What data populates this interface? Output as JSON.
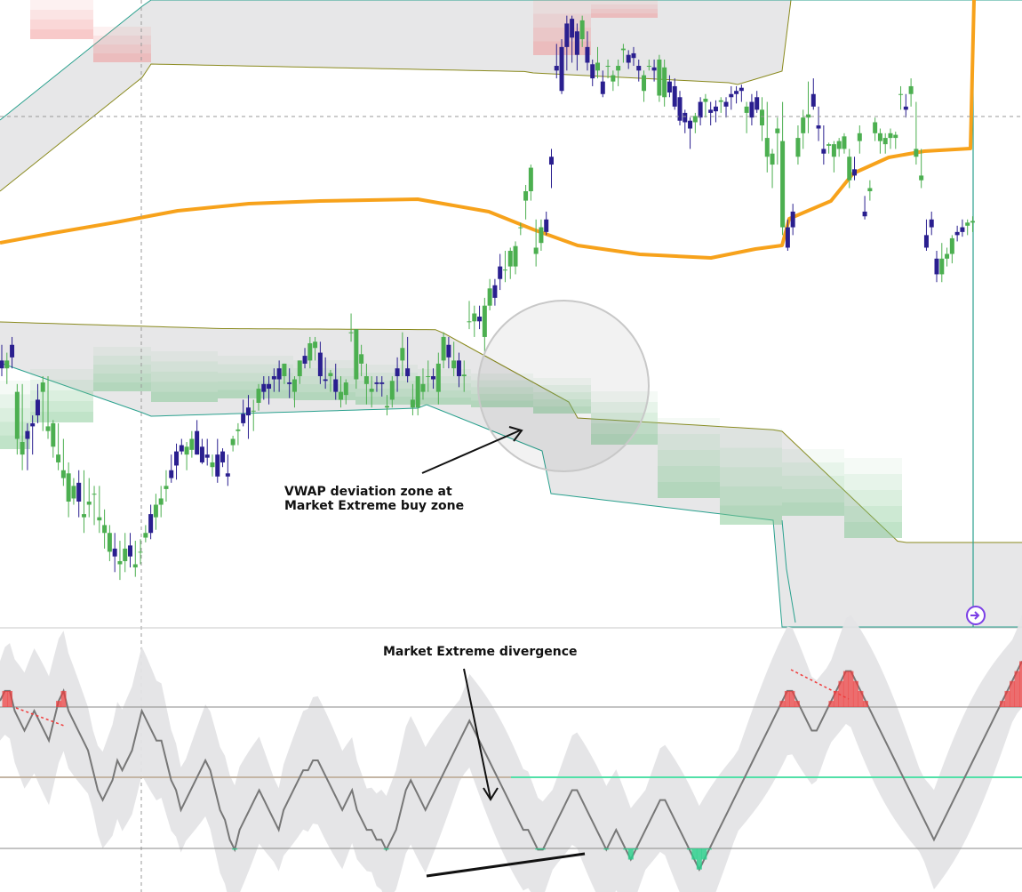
{
  "chart_data": {
    "type": "candlestick_with_oscillator",
    "colors": {
      "bull": "#4caf50",
      "bear": "#2a1f8f",
      "vwap": "#f7a21b",
      "band_fill": "#e4e4e6",
      "upper_inner_line": "#8a8a1e",
      "outer_line": "#2aa18e",
      "sell_zone": "#f08f8f",
      "buy_zone": "#7cc48b",
      "osc_line": "#777777",
      "osc_bear": "#f03b3b",
      "osc_bull": "#25d08a",
      "midline_red": "#f5a3a3",
      "midline_green": "#52e0a8",
      "marker": "#7b3fe6"
    },
    "price_panel": {
      "candles": [
        [
          210,
          220,
          200,
          205
        ],
        [
          205,
          215,
          195,
          210
        ],
        [
          220,
          225,
          205,
          212
        ],
        [
          160,
          195,
          150,
          190
        ],
        [
          150,
          195,
          140,
          158
        ],
        [
          165,
          170,
          140,
          160
        ],
        [
          170,
          175,
          150,
          168
        ],
        [
          185,
          195,
          170,
          175
        ],
        [
          190,
          200,
          165,
          196
        ],
        [
          165,
          200,
          160,
          168
        ],
        [
          155,
          172,
          148,
          170
        ],
        [
          145,
          170,
          140,
          150
        ],
        [
          135,
          160,
          130,
          140
        ],
        [
          120,
          145,
          110,
          138
        ],
        [
          122,
          135,
          118,
          130
        ],
        [
          132,
          140,
          110,
          120
        ],
        [
          110,
          140,
          100,
          112
        ],
        [
          118,
          135,
          110,
          120
        ],
        [
          125,
          130,
          105,
          125
        ],
        [
          108,
          130,
          100,
          110
        ],
        [
          100,
          115,
          90,
          105
        ],
        [
          88,
          105,
          82,
          100
        ],
        [
          90,
          100,
          75,
          85
        ],
        [
          80,
          95,
          70,
          82
        ],
        [
          82,
          100,
          75,
          90
        ],
        [
          92,
          100,
          78,
          85
        ],
        [
          78,
          95,
          72,
          80
        ],
        [
          88,
          96,
          80,
          88
        ],
        [
          97,
          105,
          94,
          100
        ],
        [
          112,
          118,
          96,
          100
        ],
        [
          110,
          125,
          102,
          118
        ],
        [
          118,
          130,
          110,
          122
        ],
        [
          128,
          140,
          120,
          130
        ],
        [
          140,
          150,
          132,
          135
        ],
        [
          152,
          157,
          134,
          143
        ],
        [
          156,
          160,
          150,
          152
        ],
        [
          150,
          158,
          140,
          155
        ],
        [
          153,
          165,
          148,
          160
        ],
        [
          165,
          172,
          150,
          150
        ],
        [
          155,
          160,
          144,
          145
        ],
        [
          150,
          160,
          143,
          148
        ],
        [
          142,
          150,
          136,
          145
        ],
        [
          150,
          160,
          132,
          136
        ],
        [
          152,
          154,
          142,
          145
        ],
        [
          138,
          150,
          130,
          136
        ],
        [
          156,
          162,
          152,
          160
        ],
        [
          165,
          170,
          156,
          166
        ],
        [
          176,
          185,
          168,
          170
        ],
        [
          180,
          188,
          160,
          175
        ],
        [
          178,
          185,
          165,
          178
        ],
        [
          183,
          195,
          178,
          192
        ],
        [
          195,
          200,
          185,
          190
        ],
        [
          195,
          200,
          182,
          192
        ],
        [
          200,
          205,
          190,
          198
        ],
        [
          205,
          210,
          190,
          198
        ],
        [
          200,
          208,
          195,
          208
        ],
        [
          196,
          205,
          186,
          195
        ],
        [
          190,
          200,
          180,
          198
        ],
        [
          200,
          210,
          195,
          210
        ],
        [
          213,
          218,
          205,
          208
        ],
        [
          210,
          225,
          205,
          221
        ],
        [
          218,
          225,
          210,
          222
        ],
        [
          215,
          222,
          195,
          200
        ],
        [
          198,
          212,
          192,
          197
        ],
        [
          200,
          204,
          190,
          202
        ],
        [
          198,
          208,
          185,
          190
        ],
        [
          185,
          200,
          180,
          190
        ],
        [
          188,
          198,
          182,
          196
        ],
        [
          228,
          240,
          222,
          228
        ],
        [
          198,
          230,
          192,
          230
        ],
        [
          208,
          220,
          200,
          214
        ],
        [
          195,
          208,
          182,
          200
        ],
        [
          190,
          200,
          180,
          192
        ],
        [
          196,
          200,
          190,
          195
        ],
        [
          196,
          200,
          187,
          195
        ],
        [
          180,
          188,
          175,
          181
        ],
        [
          185,
          200,
          180,
          197
        ],
        [
          205,
          212,
          190,
          200
        ],
        [
          210,
          228,
          200,
          218
        ],
        [
          205,
          225,
          196,
          200
        ],
        [
          180,
          195,
          175,
          185
        ],
        [
          180,
          200,
          175,
          200
        ],
        [
          190,
          205,
          185,
          195
        ],
        [
          200,
          210,
          190,
          200
        ],
        [
          200,
          205,
          192,
          198
        ],
        [
          190,
          215,
          182,
          208
        ],
        [
          210,
          228,
          205,
          225
        ],
        [
          220,
          225,
          205,
          212
        ],
        [
          205,
          222,
          200,
          210
        ],
        [
          210,
          215,
          193,
          200
        ],
        [
          200,
          210,
          190,
          201
        ],
        [
          235,
          248,
          230,
          235
        ],
        [
          235,
          245,
          225,
          240
        ],
        [
          238,
          245,
          230,
          235
        ],
        [
          225,
          250,
          215,
          245
        ],
        [
          245,
          262,
          242,
          256
        ],
        [
          258,
          262,
          245,
          250
        ],
        [
          270,
          278,
          255,
          262
        ],
        [
          268,
          280,
          260,
          268
        ],
        [
          270,
          282,
          262,
          280
        ],
        [
          270,
          286,
          265,
          283
        ],
        [
          295,
          298,
          290,
          295
        ],
        [
          312,
          322,
          300,
          318
        ],
        [
          318,
          335,
          312,
          333
        ],
        [
          278,
          300,
          270,
          282
        ],
        [
          285,
          300,
          280,
          295
        ],
        [
          300,
          305,
          290,
          292
        ],
        [
          340,
          345,
          320,
          335
        ],
        [
          398,
          412,
          390,
          395
        ],
        [
          410,
          415,
          380,
          382
        ],
        [
          425,
          430,
          395,
          410
        ],
        [
          428,
          430,
          400,
          416
        ],
        [
          420,
          425,
          395,
          405
        ],
        [
          415,
          430,
          410,
          427
        ],
        [
          410,
          420,
          395,
          400
        ],
        [
          399,
          402,
          385,
          390
        ],
        [
          395,
          410,
          390,
          400
        ],
        [
          388,
          395,
          378,
          380
        ],
        [
          398,
          402,
          390,
          398
        ],
        [
          388,
          395,
          382,
          392
        ],
        [
          395,
          402,
          385,
          398
        ],
        [
          408,
          412,
          400,
          409
        ],
        [
          405,
          408,
          396,
          400
        ],
        [
          406,
          410,
          398,
          403
        ],
        [
          398,
          402,
          388,
          395
        ],
        [
          382,
          395,
          375,
          392
        ],
        [
          398,
          402,
          395,
          398
        ],
        [
          397,
          402,
          388,
          395
        ],
        [
          379,
          405,
          375,
          402
        ],
        [
          378,
          402,
          372,
          397
        ],
        [
          388,
          392,
          378,
          381
        ],
        [
          385,
          390,
          370,
          372
        ],
        [
          378,
          382,
          360,
          363
        ],
        [
          368,
          370,
          355,
          362
        ],
        [
          363,
          365,
          345,
          358
        ],
        [
          362,
          368,
          355,
          366
        ],
        [
          375,
          378,
          360,
          365
        ],
        [
          375,
          380,
          365,
          377
        ],
        [
          370,
          375,
          360,
          368
        ],
        [
          372,
          376,
          362,
          369
        ],
        [
          375,
          378,
          368,
          376
        ],
        [
          375,
          378,
          365,
          372
        ],
        [
          380,
          385,
          370,
          378
        ],
        [
          382,
          385,
          374,
          380
        ],
        [
          384,
          386,
          375,
          382
        ],
        [
          368,
          375,
          355,
          372
        ],
        [
          375,
          380,
          360,
          365
        ],
        [
          378,
          382,
          368,
          370
        ],
        [
          360,
          378,
          350,
          370
        ],
        [
          340,
          375,
          330,
          352
        ],
        [
          335,
          345,
          320,
          342
        ],
        [
          355,
          365,
          335,
          358
        ],
        [
          295,
          375,
          290,
          350
        ],
        [
          295,
          300,
          280,
          282
        ],
        [
          305,
          310,
          290,
          295
        ],
        [
          340,
          360,
          335,
          352
        ],
        [
          355,
          370,
          345,
          365
        ],
        [
          365,
          388,
          355,
          367
        ],
        [
          380,
          390,
          370,
          372
        ],
        [
          360,
          372,
          350,
          358
        ],
        [
          345,
          360,
          335,
          342
        ],
        [
          347,
          349,
          342,
          348
        ],
        [
          340,
          350,
          330,
          348
        ],
        [
          345,
          352,
          340,
          350
        ],
        [
          345,
          355,
          342,
          353
        ],
        [
          325,
          345,
          320,
          340
        ],
        [
          332,
          340,
          325,
          328
        ],
        [
          350,
          360,
          342,
          355
        ],
        [
          305,
          315,
          300,
          302
        ],
        [
          318,
          325,
          312,
          320
        ],
        [
          355,
          365,
          350,
          362
        ],
        [
          350,
          358,
          342,
          355
        ],
        [
          348,
          355,
          342,
          352
        ],
        [
          352,
          358,
          345,
          355
        ],
        [
          352,
          356,
          345,
          354
        ],
        [
          380,
          385,
          370,
          380
        ],
        [
          372,
          380,
          365,
          370
        ],
        [
          380,
          390,
          372,
          385
        ],
        [
          340,
          375,
          335,
          345
        ],
        [
          325,
          345,
          320,
          328
        ],
        [
          290,
          300,
          280,
          282
        ],
        [
          300,
          305,
          290,
          295
        ],
        [
          275,
          280,
          260,
          265
        ],
        [
          265,
          285,
          260,
          275
        ],
        [
          275,
          282,
          270,
          278
        ],
        [
          278,
          290,
          272,
          288
        ],
        [
          292,
          296,
          286,
          290
        ],
        [
          295,
          300,
          289,
          292
        ],
        [
          296,
          300,
          290,
          298
        ],
        [
          298,
          302,
          292,
          299
        ]
      ],
      "vwap_series": "ramps from ~220 at left, flat ~240 mid, dips to ~215 at bottom, rises to ~360 at right",
      "dashed_crosshair": "vertical at candle 22, horizontal at upper level"
    },
    "annotations": {
      "zone_note_line1": "VWAP deviation zone at",
      "zone_note_line2": "Market Extreme buy zone",
      "divergence_note": "Market Extreme divergence"
    },
    "oscillator": {
      "values": [
        5,
        6,
        6,
        4,
        3,
        2,
        3,
        4,
        3,
        2,
        1,
        3,
        5,
        6,
        4,
        3,
        2,
        1,
        0,
        -2,
        -4,
        -5,
        -4,
        -3,
        -1,
        -2,
        -1,
        0,
        2,
        4,
        3,
        2,
        1,
        1,
        -1,
        -3,
        -4,
        -6,
        -5,
        -4,
        -3,
        -2,
        -1,
        -2,
        -4,
        -6,
        -7,
        -9,
        -10,
        -8,
        -7,
        -6,
        -5,
        -4,
        -5,
        -6,
        -7,
        -8,
        -6,
        -5,
        -4,
        -3,
        -2,
        -2,
        -1,
        -1,
        -2,
        -3,
        -4,
        -5,
        -6,
        -5,
        -4,
        -6,
        -7,
        -8,
        -8,
        -9,
        -9,
        -10,
        -9,
        -8,
        -6,
        -4,
        -3,
        -4,
        -5,
        -6,
        -5,
        -4,
        -3,
        -2,
        -1,
        0,
        1,
        2,
        3,
        2,
        1,
        0,
        -1,
        -2,
        -3,
        -4,
        -5,
        -6,
        -7,
        -8,
        -8,
        -9,
        -10,
        -10,
        -9,
        -8,
        -7,
        -6,
        -5,
        -4,
        -4,
        -5,
        -6,
        -7,
        -8,
        -9,
        -10,
        -9,
        -8,
        -9,
        -10,
        -11,
        -10,
        -9,
        -8,
        -7,
        -6,
        -5,
        -5,
        -6,
        -7,
        -8,
        -9,
        -10,
        -11,
        -12,
        -11,
        -10,
        -9,
        -8,
        -7,
        -6,
        -5,
        -4,
        -3,
        -2,
        -1,
        0,
        1,
        2,
        3,
        4,
        5,
        6,
        6,
        5,
        4,
        3,
        2,
        2,
        3,
        4,
        5,
        6,
        7,
        8,
        8,
        7,
        6,
        5,
        4,
        3,
        2,
        1,
        0,
        -1,
        -2,
        -3,
        -4,
        -5,
        -6,
        -7,
        -8,
        -9,
        -8,
        -7,
        -6,
        -5,
        -4,
        -3,
        -2,
        -1,
        0,
        1,
        2,
        3,
        4,
        5,
        6,
        7,
        8,
        9
      ]
    }
  }
}
